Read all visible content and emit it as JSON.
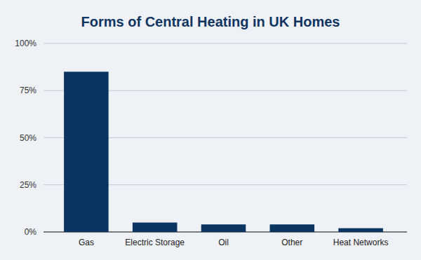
{
  "chart_data": {
    "type": "bar",
    "title": "Forms of Central Heating in UK Homes",
    "categories": [
      "Gas",
      "Electric Storage",
      "Oil",
      "Other",
      "Heat Networks"
    ],
    "values": [
      85,
      5,
      4,
      4,
      2
    ],
    "color": "#0b3561",
    "ylim": [
      0,
      100
    ],
    "yticks": [
      {
        "value": 0,
        "label": "0%"
      },
      {
        "value": 25,
        "label": "25%"
      },
      {
        "value": 50,
        "label": "50%"
      },
      {
        "value": 75,
        "label": "75%"
      },
      {
        "value": 100,
        "label": "100%"
      }
    ],
    "grid": true
  }
}
